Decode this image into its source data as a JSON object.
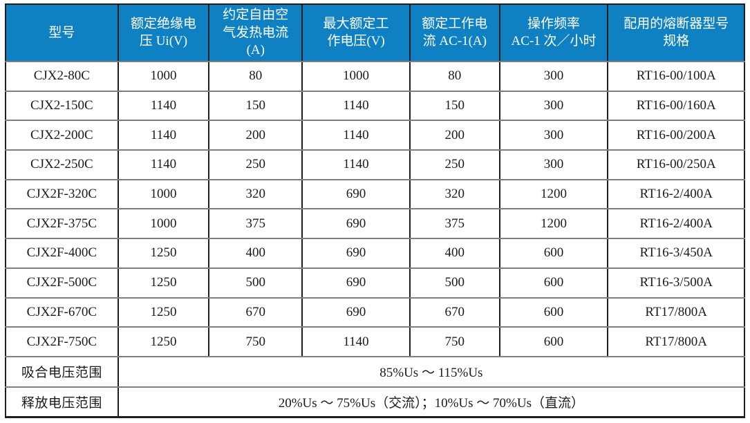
{
  "table": {
    "headers": [
      "型号",
      "额定绝缘电\n压 Ui(V)",
      "约定自由空\n气发热电流\n(A)",
      "最大额定工\n作电压(V)",
      "额定工作电\n流 AC-1(A)",
      "操作频率\nAC-1 次／小时",
      "配用的熔断器型号\n规格"
    ],
    "rows": [
      [
        "CJX2-80C",
        "1000",
        "80",
        "1000",
        "80",
        "300",
        "RT16-00/100A"
      ],
      [
        "CJX2-150C",
        "1140",
        "150",
        "1140",
        "150",
        "300",
        "RT16-00/160A"
      ],
      [
        "CJX2-200C",
        "1140",
        "200",
        "1140",
        "200",
        "300",
        "RT16-00/200A"
      ],
      [
        "CJX2-250C",
        "1140",
        "250",
        "1140",
        "250",
        "300",
        "RT16-00/250A"
      ],
      [
        "CJX2F-320C",
        "1000",
        "320",
        "690",
        "320",
        "1200",
        "RT16-2/400A"
      ],
      [
        "CJX2F-375C",
        "1000",
        "375",
        "690",
        "375",
        "1200",
        "RT16-2/400A"
      ],
      [
        "CJX2F-400C",
        "1250",
        "400",
        "690",
        "400",
        "600",
        "RT16-3/450A"
      ],
      [
        "CJX2F-500C",
        "1250",
        "500",
        "690",
        "500",
        "600",
        "RT16-3/500A"
      ],
      [
        "CJX2F-670C",
        "1250",
        "670",
        "690",
        "670",
        "600",
        "RT17/800A"
      ],
      [
        "CJX2F-750C",
        "1250",
        "750",
        "1140",
        "750",
        "600",
        "RT17/800A"
      ]
    ],
    "footer_rows": [
      {
        "label": "吸合电压范围",
        "value": "85%Us ～ 115%Us"
      },
      {
        "label": "释放电压范围",
        "value": "20%Us ～ 75%Us（交流）；10%Us ～ 70%Us（直流）"
      }
    ]
  },
  "colors": {
    "header_bg": "#0f81c3",
    "header_text": "#ffffff",
    "body_text": "#1a1a1a",
    "border_dark": "#1d1d1d",
    "border_gray": "#7e7e7e"
  }
}
